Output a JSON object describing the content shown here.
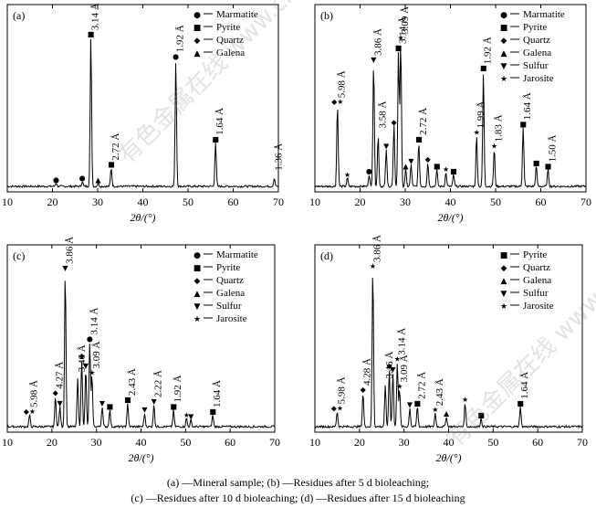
{
  "watermark": "有色金属在线 www.cnnmol.com",
  "captions": {
    "line1": "(a) —Mineral sample; (b) —Residues after 5 d bioleaching;",
    "line2": "(c) —Residues after 10 d bioleaching; (d) —Residues after 15 d bioleaching"
  },
  "chart_data": [
    {
      "type": "line",
      "panel_label": "(a)",
      "xlabel": "2θ/(°)",
      "xlim": [
        10,
        70
      ],
      "xticks": [
        10,
        20,
        30,
        40,
        50,
        60,
        70
      ],
      "ylabel": "",
      "legend": [
        {
          "symbol": "●",
          "label": "Marmatite"
        },
        {
          "symbol": "■",
          "label": "Pyrite"
        },
        {
          "symbol": "◆",
          "label": "Quartz"
        },
        {
          "symbol": "▲",
          "label": "Galena"
        }
      ],
      "peaks": [
        {
          "x": 20.8,
          "h": 0.02,
          "symbol": "●"
        },
        {
          "x": 26.6,
          "h": 0.03,
          "symbol": "●"
        },
        {
          "x": 28.5,
          "h": 0.88,
          "symbol": "■",
          "label": "3.14 Å"
        },
        {
          "x": 30.1,
          "h": 0.02,
          "symbol": "▲"
        },
        {
          "x": 33.0,
          "h": 0.11,
          "symbol": "■",
          "label": "2.72 Å"
        },
        {
          "x": 47.3,
          "h": 0.75,
          "symbol": "●",
          "label": "1.92 Å"
        },
        {
          "x": 56.1,
          "h": 0.26,
          "symbol": "■",
          "label": "1.64 Å"
        },
        {
          "x": 69.1,
          "h": 0.05,
          "symbol": "",
          "label": "1.36 Å"
        }
      ]
    },
    {
      "type": "line",
      "panel_label": "(b)",
      "xlabel": "2θ/(°)",
      "xlim": [
        10,
        70
      ],
      "xticks": [
        10,
        20,
        30,
        40,
        50,
        60,
        70
      ],
      "ylabel": "",
      "legend": [
        {
          "symbol": "●",
          "label": "Marmatite"
        },
        {
          "symbol": "■",
          "label": "Pyrite"
        },
        {
          "symbol": "◆",
          "label": "Quartz"
        },
        {
          "symbol": "▲",
          "label": "Galena"
        },
        {
          "symbol": "▼",
          "label": "Sulfur"
        },
        {
          "symbol": "★",
          "label": "Jarosite"
        }
      ],
      "peaks": [
        {
          "x": 15.0,
          "h": 0.48,
          "symbol": "◆★",
          "label": "5.98 Å"
        },
        {
          "x": 17.2,
          "h": 0.05,
          "symbol": "★"
        },
        {
          "x": 22.0,
          "h": 0.07,
          "symbol": "●"
        },
        {
          "x": 23.0,
          "h": 0.73,
          "symbol": "▼",
          "label": "3.86 Å"
        },
        {
          "x": 24.0,
          "h": 0.3,
          "symbol": "",
          "label": "3.58 Å"
        },
        {
          "x": 25.8,
          "h": 0.22,
          "symbol": "▼"
        },
        {
          "x": 27.5,
          "h": 0.36,
          "symbol": "◆"
        },
        {
          "x": 28.5,
          "h": 0.8,
          "symbol": "■",
          "label": "3.14 Å"
        },
        {
          "x": 29.0,
          "h": 0.86,
          "symbol": "★",
          "label": "3.09 Å"
        },
        {
          "x": 30.1,
          "h": 0.1,
          "symbol": "▲"
        },
        {
          "x": 31.3,
          "h": 0.13,
          "symbol": "▼"
        },
        {
          "x": 33.0,
          "h": 0.26,
          "symbol": "■",
          "label": "2.72 Å"
        },
        {
          "x": 35.0,
          "h": 0.14,
          "symbol": "◆"
        },
        {
          "x": 37.0,
          "h": 0.1,
          "symbol": "■"
        },
        {
          "x": 39.0,
          "h": 0.08,
          "symbol": "★"
        },
        {
          "x": 40.7,
          "h": 0.07,
          "symbol": "■"
        },
        {
          "x": 45.8,
          "h": 0.3,
          "symbol": "★",
          "label": "1.99 Å"
        },
        {
          "x": 47.3,
          "h": 0.68,
          "symbol": "■",
          "label": "1.92 Å"
        },
        {
          "x": 49.7,
          "h": 0.22,
          "symbol": "★",
          "label": "1.83 Å"
        },
        {
          "x": 56.1,
          "h": 0.35,
          "symbol": "■",
          "label": "1.64 Å"
        },
        {
          "x": 59.0,
          "h": 0.12,
          "symbol": "■"
        },
        {
          "x": 61.6,
          "h": 0.1,
          "symbol": "■",
          "label": "1.50 Å"
        }
      ]
    },
    {
      "type": "line",
      "panel_label": "(c)",
      "xlabel": "2θ/(°)",
      "xlim": [
        10,
        70
      ],
      "xticks": [
        10,
        20,
        30,
        40,
        50,
        60,
        70
      ],
      "ylabel": "",
      "legend": [
        {
          "symbol": "●",
          "label": "Marmatite"
        },
        {
          "symbol": "■",
          "label": "Pyrite"
        },
        {
          "symbol": "◆",
          "label": "Quartz"
        },
        {
          "symbol": "▲",
          "label": "Galena"
        },
        {
          "symbol": "▼",
          "label": "Sulfur"
        },
        {
          "symbol": "★",
          "label": "Jarosite"
        }
      ],
      "peaks": [
        {
          "x": 15.0,
          "h": 0.07,
          "symbol": "◆★",
          "label": "5.98 Å"
        },
        {
          "x": 20.8,
          "h": 0.18,
          "symbol": "◆",
          "label": "4.27 Å"
        },
        {
          "x": 21.8,
          "h": 0.12,
          "symbol": "▼"
        },
        {
          "x": 23.0,
          "h": 0.92,
          "symbol": "▼",
          "label": "3.86 Å"
        },
        {
          "x": 25.8,
          "h": 0.28,
          "symbol": "",
          "label": "3.46 Å"
        },
        {
          "x": 26.7,
          "h": 0.4,
          "symbol": "◆"
        },
        {
          "x": 27.6,
          "h": 0.34,
          "symbol": "▼"
        },
        {
          "x": 28.5,
          "h": 0.5,
          "symbol": "●",
          "label": "3.14 Å"
        },
        {
          "x": 29.0,
          "h": 0.3,
          "symbol": "★",
          "label": "3.09 Å"
        },
        {
          "x": 31.3,
          "h": 0.12,
          "symbol": "▼"
        },
        {
          "x": 33.0,
          "h": 0.1,
          "symbol": "■"
        },
        {
          "x": 37.0,
          "h": 0.14,
          "symbol": "■",
          "label": "2.43 Å"
        },
        {
          "x": 40.8,
          "h": 0.08,
          "symbol": "▼"
        },
        {
          "x": 42.9,
          "h": 0.13,
          "symbol": "▼",
          "label": "2.22 Å"
        },
        {
          "x": 47.3,
          "h": 0.1,
          "symbol": "■",
          "label": "1.92 Å"
        },
        {
          "x": 50.2,
          "h": 0.05,
          "symbol": "★"
        },
        {
          "x": 51.2,
          "h": 0.04,
          "symbol": "▼"
        },
        {
          "x": 56.1,
          "h": 0.07,
          "symbol": "■",
          "label": "1.64 Å"
        }
      ]
    },
    {
      "type": "line",
      "panel_label": "(d)",
      "xlabel": "2θ/(°)",
      "xlim": [
        10,
        70
      ],
      "xticks": [
        10,
        20,
        30,
        40,
        50,
        60,
        70
      ],
      "ylabel": "",
      "legend": [
        {
          "symbol": "■",
          "label": "Pyrite"
        },
        {
          "symbol": "◆",
          "label": "Quartz"
        },
        {
          "symbol": "▲",
          "label": "Galena"
        },
        {
          "symbol": "▼",
          "label": "Sulfur"
        },
        {
          "symbol": "★",
          "label": "Jarosite"
        }
      ],
      "peaks": [
        {
          "x": 15.0,
          "h": 0.09,
          "symbol": "◆★",
          "label": "5.98 Å"
        },
        {
          "x": 20.8,
          "h": 0.2,
          "symbol": "◆",
          "label": "4.28 Å"
        },
        {
          "x": 23.0,
          "h": 0.93,
          "symbol": "★",
          "label": "3.86 Å"
        },
        {
          "x": 25.8,
          "h": 0.24,
          "symbol": "",
          "label": "3.46 Å"
        },
        {
          "x": 26.7,
          "h": 0.34,
          "symbol": "◆"
        },
        {
          "x": 27.5,
          "h": 0.32,
          "symbol": "▼"
        },
        {
          "x": 28.5,
          "h": 0.38,
          "symbol": "★",
          "label": "3.14 Å"
        },
        {
          "x": 29.0,
          "h": 0.22,
          "symbol": "★",
          "label": "3.09 Å"
        },
        {
          "x": 31.3,
          "h": 0.11,
          "symbol": "▼"
        },
        {
          "x": 33.0,
          "h": 0.12,
          "symbol": "■",
          "label": "2.72 Å"
        },
        {
          "x": 37.0,
          "h": 0.08,
          "symbol": "★",
          "label": "2.43 Å"
        },
        {
          "x": 39.5,
          "h": 0.06,
          "symbol": "▲"
        },
        {
          "x": 43.7,
          "h": 0.14,
          "symbol": "★"
        },
        {
          "x": 47.3,
          "h": 0.05,
          "symbol": "■"
        },
        {
          "x": 56.1,
          "h": 0.12,
          "symbol": "■",
          "label": "1.64 Å"
        }
      ]
    }
  ]
}
